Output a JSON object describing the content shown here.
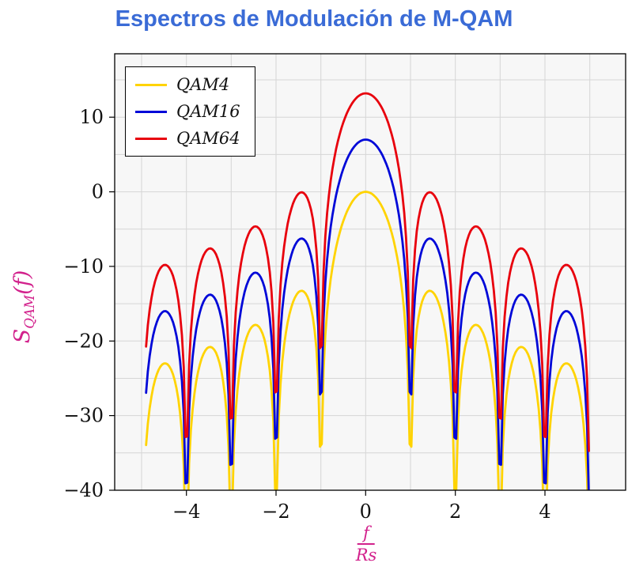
{
  "chart_data": {
    "type": "line",
    "title": "Espectros de Modulación de M-QAM",
    "xlabel": {
      "numerator": "f",
      "denominator": "Rs"
    },
    "ylabel": {
      "base": "S",
      "sub": "QAM",
      "suffix": "(f)"
    },
    "xlim": [
      -5.6,
      5.8
    ],
    "ylim": [
      -40,
      18.5
    ],
    "xticks": [
      -4,
      -2,
      0,
      2,
      4
    ],
    "yticks": [
      -40,
      -30,
      -20,
      -10,
      0,
      10
    ],
    "grid": {
      "x_start": -5,
      "x_end": 5,
      "x_step": 1,
      "y_start": -40,
      "y_end": 15,
      "y_step": 5
    },
    "sampling": {
      "start": -4.9,
      "end": 4.98,
      "step": 0.04
    },
    "formula": "y_dB = peak_db + 20*log10(|sin(pi*x)/(pi*x)|)",
    "series": [
      {
        "name": "QAM4",
        "peak_db": 0,
        "color": "#FFD300"
      },
      {
        "name": "QAM16",
        "peak_db": 7,
        "color": "#0008D8"
      },
      {
        "name": "QAM64",
        "peak_db": 13.2,
        "color": "#E8000D"
      }
    ],
    "legend": {
      "position": "top-left"
    },
    "colors": {
      "title": "#3A6BD6",
      "axis_label": "#D2218C",
      "grid": "#d6d6d6",
      "plot_bg": "#f7f7f7",
      "frame": "#000000",
      "tick_text": "#111111"
    }
  }
}
